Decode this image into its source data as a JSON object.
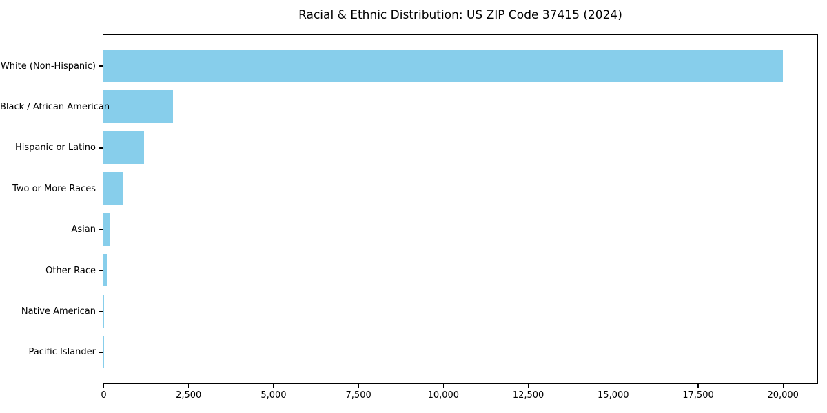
{
  "title": "Racial & Ethnic Distribution: US ZIP Code 37415 (2024)",
  "chart_data": {
    "type": "bar",
    "orientation": "horizontal",
    "title": "Racial & Ethnic Distribution: US ZIP Code 37415 (2024)",
    "xlabel": "",
    "ylabel": "",
    "categories": [
      "White (Non-Hispanic)",
      "Black / African American",
      "Hispanic or Latino",
      "Two or More Races",
      "Asian",
      "Other Race",
      "Native American",
      "Pacific Islander"
    ],
    "values": [
      20000,
      2050,
      1200,
      570,
      185,
      100,
      30,
      10
    ],
    "xlim": [
      0,
      21000
    ],
    "xticks": [
      0,
      2500,
      5000,
      7500,
      10000,
      12500,
      15000,
      17500,
      20000
    ],
    "xtick_labels": [
      "0",
      "2,500",
      "5,000",
      "7,500",
      "10,000",
      "12,500",
      "15,000",
      "17,500",
      "20,000"
    ],
    "grid": false,
    "legend": null,
    "bar_color": "#87CEEB"
  },
  "colors": {
    "bar": "#87CEEB",
    "axis": "#000000",
    "text": "#000000",
    "background": "#FFFFFF"
  }
}
